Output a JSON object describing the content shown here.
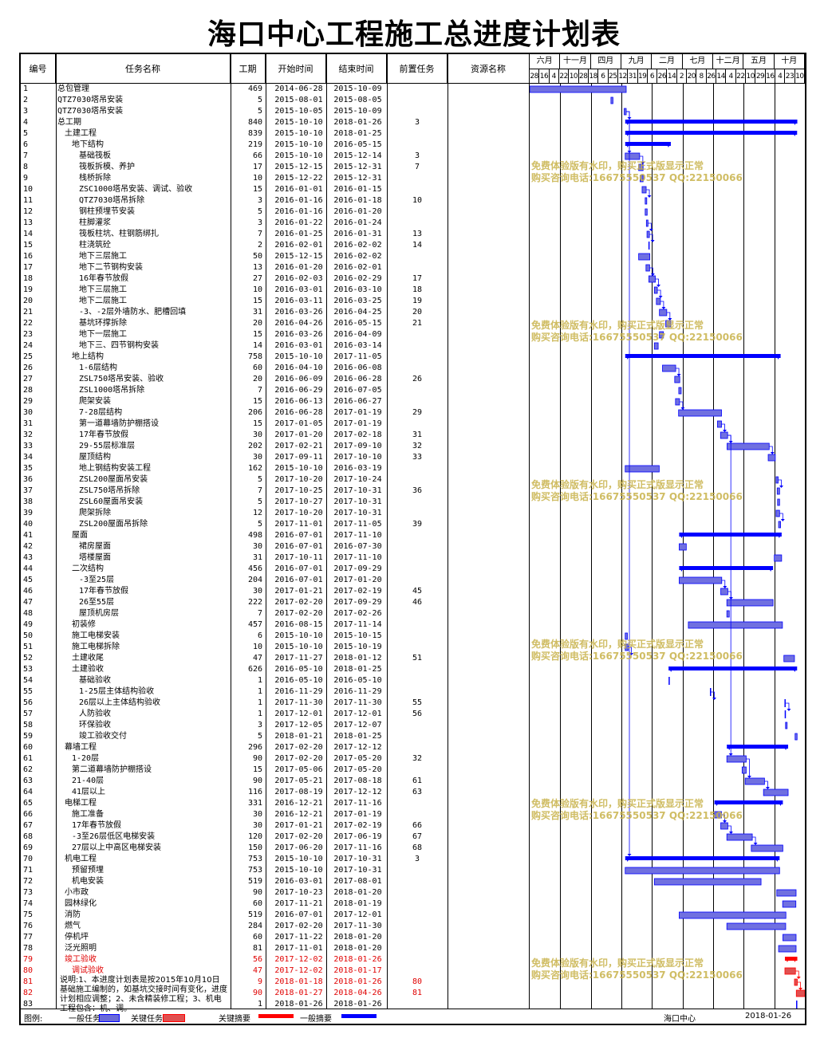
{
  "title": "海口中心工程施工总进度计划表",
  "headers": {
    "no": "编号",
    "name": "任务名称",
    "dur": "工期",
    "start": "开始时间",
    "end": "结束时间",
    "pred": "前置任务",
    "res": "资源名称"
  },
  "timeline": {
    "months": [
      "六月",
      "十一月",
      "四月",
      "九月",
      "二月",
      "七月",
      "十二月",
      "五月",
      "十月"
    ],
    "days": [
      "28",
      "16",
      "4",
      "22",
      "10",
      "28",
      "18",
      "6",
      "25",
      "12",
      "31",
      "19",
      "6",
      "26",
      "14",
      "2",
      "20",
      "8",
      "26",
      "14",
      "4",
      "22",
      "10",
      "29",
      "16",
      "4",
      "23",
      "10"
    ]
  },
  "tasks": [
    {
      "no": "1",
      "name": "总包管理",
      "indent": 0,
      "dur": "469",
      "start": "2014-06-28",
      "end": "2015-10-09",
      "pred": ""
    },
    {
      "no": "2",
      "name": "QTZ7030塔吊安装",
      "indent": 0,
      "dur": "5",
      "start": "2015-08-01",
      "end": "2015-08-05",
      "pred": ""
    },
    {
      "no": "3",
      "name": "QTZ7030塔吊安装",
      "indent": 0,
      "dur": "5",
      "start": "2015-10-05",
      "end": "2015-10-09",
      "pred": ""
    },
    {
      "no": "4",
      "name": "总工期",
      "indent": 0,
      "dur": "840",
      "start": "2015-10-10",
      "end": "2018-01-26",
      "pred": "3"
    },
    {
      "no": "5",
      "name": "土建工程",
      "indent": 1,
      "dur": "839",
      "start": "2015-10-10",
      "end": "2018-01-25",
      "pred": ""
    },
    {
      "no": "6",
      "name": "地下结构",
      "indent": 2,
      "dur": "219",
      "start": "2015-10-10",
      "end": "2016-05-15",
      "pred": ""
    },
    {
      "no": "7",
      "name": "基础筏板",
      "indent": 3,
      "dur": "66",
      "start": "2015-10-10",
      "end": "2015-12-14",
      "pred": "3"
    },
    {
      "no": "8",
      "name": "筏板拆模、养护",
      "indent": 3,
      "dur": "17",
      "start": "2015-12-15",
      "end": "2015-12-31",
      "pred": "7"
    },
    {
      "no": "9",
      "name": "栈桥拆除",
      "indent": 3,
      "dur": "10",
      "start": "2015-12-22",
      "end": "2015-12-31",
      "pred": ""
    },
    {
      "no": "10",
      "name": "ZSC1000塔吊安装、调试、验收",
      "indent": 3,
      "dur": "15",
      "start": "2016-01-01",
      "end": "2016-01-15",
      "pred": ""
    },
    {
      "no": "11",
      "name": "QTZ7030塔吊拆除",
      "indent": 3,
      "dur": "3",
      "start": "2016-01-16",
      "end": "2016-01-18",
      "pred": "10"
    },
    {
      "no": "12",
      "name": "钢柱预埋节安装",
      "indent": 3,
      "dur": "5",
      "start": "2016-01-16",
      "end": "2016-01-20",
      "pred": ""
    },
    {
      "no": "13",
      "name": "柱脚灌浆",
      "indent": 3,
      "dur": "3",
      "start": "2016-01-22",
      "end": "2016-01-24",
      "pred": ""
    },
    {
      "no": "14",
      "name": "筏板柱坑、柱钢筋绑扎",
      "indent": 3,
      "dur": "7",
      "start": "2016-01-25",
      "end": "2016-01-31",
      "pred": "13"
    },
    {
      "no": "15",
      "name": "柱浇筑砼",
      "indent": 3,
      "dur": "2",
      "start": "2016-02-01",
      "end": "2016-02-02",
      "pred": "14"
    },
    {
      "no": "16",
      "name": "地下三层施工",
      "indent": 3,
      "dur": "50",
      "start": "2015-12-15",
      "end": "2016-02-02",
      "pred": ""
    },
    {
      "no": "17",
      "name": "地下二节钢构安装",
      "indent": 3,
      "dur": "13",
      "start": "2016-01-20",
      "end": "2016-02-01",
      "pred": ""
    },
    {
      "no": "18",
      "name": "16年春节放假",
      "indent": 3,
      "dur": "27",
      "start": "2016-02-03",
      "end": "2016-02-29",
      "pred": "17"
    },
    {
      "no": "19",
      "name": "地下三层施工",
      "indent": 3,
      "dur": "10",
      "start": "2016-03-01",
      "end": "2016-03-10",
      "pred": "18"
    },
    {
      "no": "20",
      "name": "地下二层施工",
      "indent": 3,
      "dur": "15",
      "start": "2016-03-11",
      "end": "2016-03-25",
      "pred": "19"
    },
    {
      "no": "21",
      "name": "-3、-2层外墙防水、肥槽回填",
      "indent": 3,
      "dur": "31",
      "start": "2016-03-26",
      "end": "2016-04-25",
      "pred": "20"
    },
    {
      "no": "22",
      "name": "基坑环撑拆除",
      "indent": 3,
      "dur": "20",
      "start": "2016-04-26",
      "end": "2016-05-15",
      "pred": "21"
    },
    {
      "no": "23",
      "name": "地下一层施工",
      "indent": 3,
      "dur": "15",
      "start": "2016-03-26",
      "end": "2016-04-09",
      "pred": ""
    },
    {
      "no": "24",
      "name": "地下三、四节钢构安装",
      "indent": 3,
      "dur": "14",
      "start": "2016-03-01",
      "end": "2016-03-14",
      "pred": ""
    },
    {
      "no": "25",
      "name": "地上结构",
      "indent": 2,
      "dur": "758",
      "start": "2015-10-10",
      "end": "2017-11-05",
      "pred": ""
    },
    {
      "no": "26",
      "name": "1-6层结构",
      "indent": 3,
      "dur": "60",
      "start": "2016-04-10",
      "end": "2016-06-08",
      "pred": ""
    },
    {
      "no": "27",
      "name": "ZSL750塔吊安装、验收",
      "indent": 3,
      "dur": "20",
      "start": "2016-06-09",
      "end": "2016-06-28",
      "pred": "26"
    },
    {
      "no": "28",
      "name": "ZSL1000塔吊拆除",
      "indent": 3,
      "dur": "7",
      "start": "2016-06-29",
      "end": "2016-07-05",
      "pred": ""
    },
    {
      "no": "29",
      "name": "爬架安装",
      "indent": 3,
      "dur": "15",
      "start": "2016-06-13",
      "end": "2016-06-27",
      "pred": ""
    },
    {
      "no": "30",
      "name": "7-28层结构",
      "indent": 3,
      "dur": "206",
      "start": "2016-06-28",
      "end": "2017-01-19",
      "pred": "29"
    },
    {
      "no": "31",
      "name": "第一道幕墙防护棚搭设",
      "indent": 3,
      "dur": "15",
      "start": "2017-01-05",
      "end": "2017-01-19",
      "pred": ""
    },
    {
      "no": "32",
      "name": "17年春节放假",
      "indent": 3,
      "dur": "30",
      "start": "2017-01-20",
      "end": "2017-02-18",
      "pred": "31"
    },
    {
      "no": "33",
      "name": "29-55层标准层",
      "indent": 3,
      "dur": "202",
      "start": "2017-02-21",
      "end": "2017-09-10",
      "pred": "32"
    },
    {
      "no": "34",
      "name": "屋顶结构",
      "indent": 3,
      "dur": "30",
      "start": "2017-09-11",
      "end": "2017-10-10",
      "pred": "33"
    },
    {
      "no": "35",
      "name": "地上钢结构安装工程",
      "indent": 3,
      "dur": "162",
      "start": "2015-10-10",
      "end": "2016-03-19",
      "pred": ""
    },
    {
      "no": "36",
      "name": "ZSL200屋面吊安装",
      "indent": 3,
      "dur": "5",
      "start": "2017-10-20",
      "end": "2017-10-24",
      "pred": ""
    },
    {
      "no": "37",
      "name": "ZSL750塔吊拆除",
      "indent": 3,
      "dur": "7",
      "start": "2017-10-25",
      "end": "2017-10-31",
      "pred": "36"
    },
    {
      "no": "38",
      "name": "ZSL60屋面吊安装",
      "indent": 3,
      "dur": "5",
      "start": "2017-10-27",
      "end": "2017-10-31",
      "pred": ""
    },
    {
      "no": "39",
      "name": "爬架拆除",
      "indent": 3,
      "dur": "12",
      "start": "2017-10-20",
      "end": "2017-10-31",
      "pred": ""
    },
    {
      "no": "40",
      "name": "ZSL200屋面吊拆除",
      "indent": 3,
      "dur": "5",
      "start": "2017-11-01",
      "end": "2017-11-05",
      "pred": "39"
    },
    {
      "no": "41",
      "name": "屋面",
      "indent": 2,
      "dur": "498",
      "start": "2016-07-01",
      "end": "2017-11-10",
      "pred": ""
    },
    {
      "no": "42",
      "name": "裙房屋面",
      "indent": 3,
      "dur": "30",
      "start": "2016-07-01",
      "end": "2016-07-30",
      "pred": ""
    },
    {
      "no": "43",
      "name": "塔楼屋面",
      "indent": 3,
      "dur": "31",
      "start": "2017-10-11",
      "end": "2017-11-10",
      "pred": ""
    },
    {
      "no": "44",
      "name": "二次结构",
      "indent": 2,
      "dur": "456",
      "start": "2016-07-01",
      "end": "2017-09-29",
      "pred": ""
    },
    {
      "no": "45",
      "name": "-3至25层",
      "indent": 3,
      "dur": "204",
      "start": "2016-07-01",
      "end": "2017-01-20",
      "pred": ""
    },
    {
      "no": "46",
      "name": "17年春节放假",
      "indent": 3,
      "dur": "30",
      "start": "2017-01-21",
      "end": "2017-02-19",
      "pred": "45"
    },
    {
      "no": "47",
      "name": "26至55层",
      "indent": 3,
      "dur": "222",
      "start": "2017-02-20",
      "end": "2017-09-29",
      "pred": "46"
    },
    {
      "no": "48",
      "name": "屋顶机房层",
      "indent": 3,
      "dur": "7",
      "start": "2017-02-20",
      "end": "2017-02-26",
      "pred": ""
    },
    {
      "no": "49",
      "name": "初装修",
      "indent": 2,
      "dur": "457",
      "start": "2016-08-15",
      "end": "2017-11-14",
      "pred": ""
    },
    {
      "no": "50",
      "name": "施工电梯安装",
      "indent": 2,
      "dur": "6",
      "start": "2015-10-10",
      "end": "2015-10-15",
      "pred": ""
    },
    {
      "no": "51",
      "name": "施工电梯拆除",
      "indent": 2,
      "dur": "10",
      "start": "2015-10-10",
      "end": "2015-10-19",
      "pred": ""
    },
    {
      "no": "52",
      "name": "土建收尾",
      "indent": 2,
      "dur": "47",
      "start": "2017-11-27",
      "end": "2018-01-12",
      "pred": "51"
    },
    {
      "no": "53",
      "name": "土建验收",
      "indent": 2,
      "dur": "626",
      "start": "2016-05-10",
      "end": "2018-01-25",
      "pred": ""
    },
    {
      "no": "54",
      "name": "基础验收",
      "indent": 3,
      "dur": "1",
      "start": "2016-05-10",
      "end": "2016-05-10",
      "pred": ""
    },
    {
      "no": "55",
      "name": "1-25层主体结构验收",
      "indent": 3,
      "dur": "1",
      "start": "2016-11-29",
      "end": "2016-11-29",
      "pred": ""
    },
    {
      "no": "56",
      "name": "26层以上主体结构验收",
      "indent": 3,
      "dur": "1",
      "start": "2017-11-30",
      "end": "2017-11-30",
      "pred": "55"
    },
    {
      "no": "57",
      "name": "人防验收",
      "indent": 3,
      "dur": "1",
      "start": "2017-12-01",
      "end": "2017-12-01",
      "pred": "56"
    },
    {
      "no": "58",
      "name": "环保验收",
      "indent": 3,
      "dur": "3",
      "start": "2017-12-05",
      "end": "2017-12-07",
      "pred": ""
    },
    {
      "no": "59",
      "name": "竣工验收交付",
      "indent": 3,
      "dur": "5",
      "start": "2018-01-21",
      "end": "2018-01-25",
      "pred": ""
    },
    {
      "no": "60",
      "name": "幕墙工程",
      "indent": 1,
      "dur": "296",
      "start": "2017-02-20",
      "end": "2017-12-12",
      "pred": ""
    },
    {
      "no": "61",
      "name": "1-20层",
      "indent": 2,
      "dur": "90",
      "start": "2017-02-20",
      "end": "2017-05-20",
      "pred": "32"
    },
    {
      "no": "62",
      "name": "第二道幕墙防护棚搭设",
      "indent": 2,
      "dur": "15",
      "start": "2017-05-06",
      "end": "2017-05-20",
      "pred": ""
    },
    {
      "no": "63",
      "name": "21-40层",
      "indent": 2,
      "dur": "90",
      "start": "2017-05-21",
      "end": "2017-08-18",
      "pred": "61"
    },
    {
      "no": "64",
      "name": "41层以上",
      "indent": 2,
      "dur": "116",
      "start": "2017-08-19",
      "end": "2017-12-12",
      "pred": "63"
    },
    {
      "no": "65",
      "name": "电梯工程",
      "indent": 1,
      "dur": "331",
      "start": "2016-12-21",
      "end": "2017-11-16",
      "pred": ""
    },
    {
      "no": "66",
      "name": "施工准备",
      "indent": 2,
      "dur": "30",
      "start": "2016-12-21",
      "end": "2017-01-19",
      "pred": ""
    },
    {
      "no": "67",
      "name": "17年春节放假",
      "indent": 2,
      "dur": "30",
      "start": "2017-01-21",
      "end": "2017-02-19",
      "pred": "66"
    },
    {
      "no": "68",
      "name": "-3至26层低区电梯安装",
      "indent": 2,
      "dur": "120",
      "start": "2017-02-20",
      "end": "2017-06-19",
      "pred": "67"
    },
    {
      "no": "69",
      "name": "27层以上中高区电梯安装",
      "indent": 2,
      "dur": "150",
      "start": "2017-06-20",
      "end": "2017-11-16",
      "pred": "68"
    },
    {
      "no": "70",
      "name": "机电工程",
      "indent": 1,
      "dur": "753",
      "start": "2015-10-10",
      "end": "2017-10-31",
      "pred": "3"
    },
    {
      "no": "71",
      "name": "预留预埋",
      "indent": 2,
      "dur": "753",
      "start": "2015-10-10",
      "end": "2017-10-31",
      "pred": ""
    },
    {
      "no": "72",
      "name": "机电安装",
      "indent": 2,
      "dur": "519",
      "start": "2016-03-01",
      "end": "2017-08-01",
      "pred": ""
    },
    {
      "no": "73",
      "name": "小市政",
      "indent": 1,
      "dur": "90",
      "start": "2017-10-23",
      "end": "2018-01-20",
      "pred": ""
    },
    {
      "no": "74",
      "name": "园林绿化",
      "indent": 1,
      "dur": "60",
      "start": "2017-11-21",
      "end": "2018-01-19",
      "pred": ""
    },
    {
      "no": "75",
      "name": "消防",
      "indent": 1,
      "dur": "519",
      "start": "2016-07-01",
      "end": "2017-12-01",
      "pred": ""
    },
    {
      "no": "76",
      "name": "燃气",
      "indent": 1,
      "dur": "284",
      "start": "2017-02-20",
      "end": "2017-11-30",
      "pred": ""
    },
    {
      "no": "77",
      "name": "停机坪",
      "indent": 1,
      "dur": "60",
      "start": "2017-11-22",
      "end": "2018-01-20",
      "pred": ""
    },
    {
      "no": "78",
      "name": "泛光照明",
      "indent": 1,
      "dur": "81",
      "start": "2017-11-01",
      "end": "2018-01-20",
      "pred": ""
    },
    {
      "no": "79",
      "name": "竣工验收",
      "indent": 1,
      "dur": "56",
      "start": "2017-12-02",
      "end": "2018-01-26",
      "pred": "",
      "red": true
    },
    {
      "no": "80",
      "name": "调试验收",
      "indent": 2,
      "dur": "47",
      "start": "2017-12-02",
      "end": "2018-01-17",
      "pred": "",
      "red": true
    },
    {
      "no": "81",
      "name": "",
      "indent": 0,
      "dur": "9",
      "start": "2018-01-18",
      "end": "2018-01-26",
      "pred": "80",
      "red": true
    },
    {
      "no": "82",
      "name": "",
      "indent": 0,
      "dur": "90",
      "start": "2018-01-27",
      "end": "2018-04-26",
      "pred": "81",
      "red": true
    },
    {
      "no": "83",
      "name": "",
      "indent": 0,
      "dur": "1",
      "start": "2018-01-26",
      "end": "2018-01-26",
      "pred": ""
    }
  ],
  "note": "说明:1、本进度计划表是按2015年10月10日基础施工编制的，如基坑交接时间有变化，进度计划相应调整；2、未含精装修工程；3、机电工程包含：机、调。",
  "watermark": {
    "line1": "免费体验版有水印，购买正式版显示正常",
    "line2": "购买咨询电话:16675550537 QQ:22150066"
  },
  "legend": {
    "label": "图例:",
    "normal_task": "一般任务",
    "key_task": "关键任务",
    "summary": "关键摘要",
    "general_summary": "一般摘要",
    "project": "海口中心",
    "date": "2018-01-26"
  },
  "colors": {
    "blue": "#0000ff",
    "red": "#ff0000",
    "bar": "#3a3ae0",
    "watermark": "#c8b24a"
  }
}
